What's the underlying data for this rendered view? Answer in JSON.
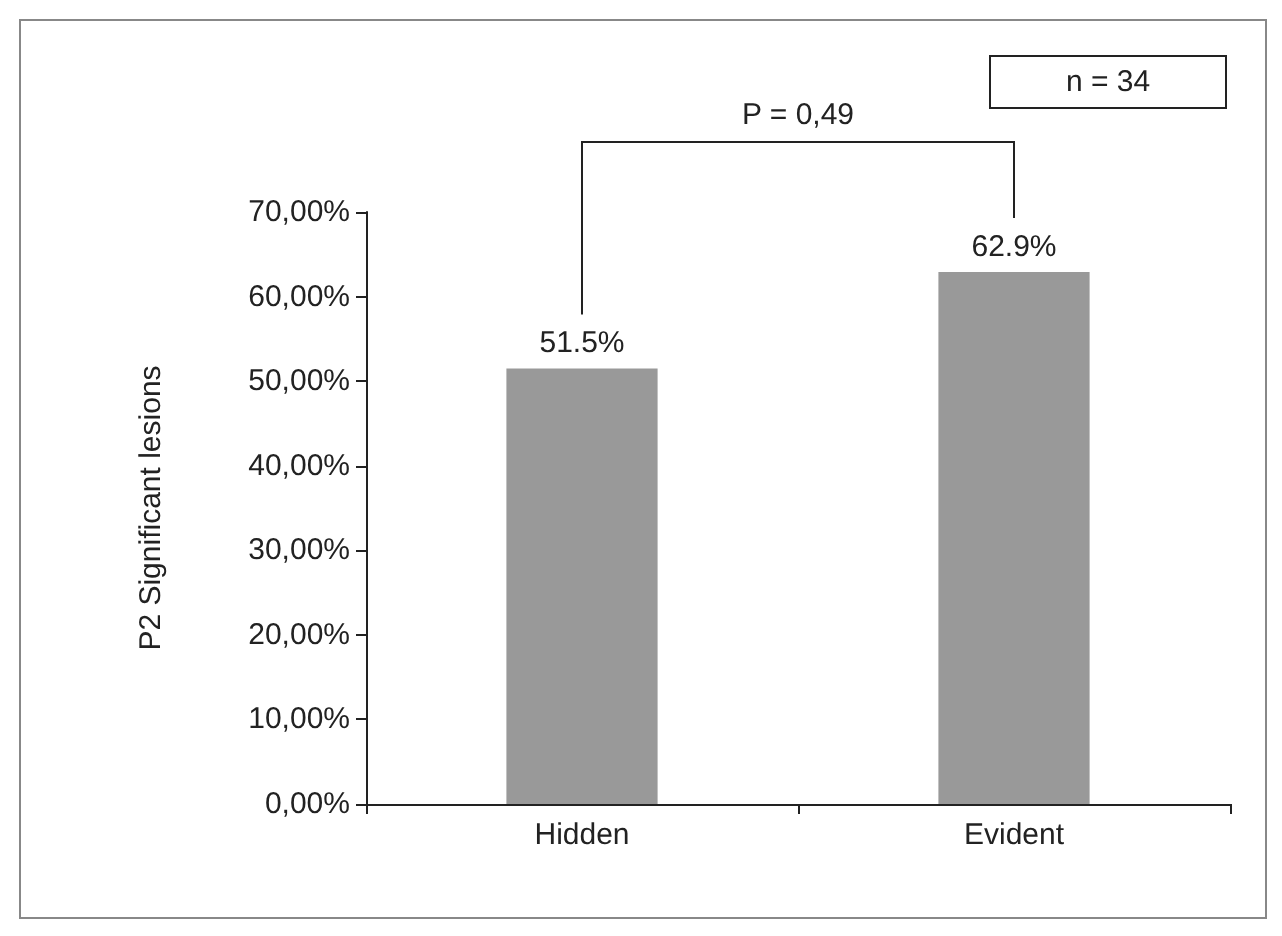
{
  "chart_data": {
    "type": "bar",
    "ylabel": "P2 Significant lesions",
    "categories": [
      "Hidden",
      "Evident"
    ],
    "values": [
      51.5,
      62.9
    ],
    "color": "#999999",
    "value_labels": [
      "51.5%",
      "62.9%"
    ],
    "ylim": [
      0,
      70
    ],
    "yticks": [
      {
        "value": 0,
        "label": "0,00%"
      },
      {
        "value": 10,
        "label": "10,00%"
      },
      {
        "value": 20,
        "label": "20,00%"
      },
      {
        "value": 30,
        "label": "30,00%"
      },
      {
        "value": 40,
        "label": "40,00%"
      },
      {
        "value": 50,
        "label": "50,00%"
      },
      {
        "value": 60,
        "label": "60,00%"
      },
      {
        "value": 70,
        "label": "70,00%"
      }
    ],
    "annotations": [
      "P = 0,49",
      "n = 34"
    ]
  }
}
